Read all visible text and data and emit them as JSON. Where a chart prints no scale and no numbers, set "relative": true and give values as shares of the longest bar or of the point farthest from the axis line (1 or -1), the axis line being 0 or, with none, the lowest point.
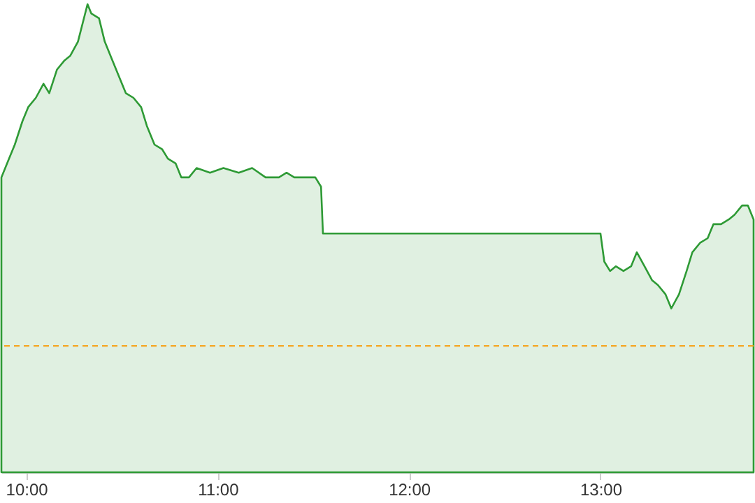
{
  "chart_data": {
    "type": "area",
    "relative": true,
    "color": "#2e9a35",
    "x": [
      9.87,
      9.91,
      9.94,
      9.98,
      10.01,
      10.05,
      10.09,
      10.12,
      10.16,
      10.2,
      10.23,
      10.27,
      10.32,
      10.34,
      10.38,
      10.41,
      10.45,
      10.49,
      10.52,
      10.56,
      10.6,
      10.63,
      10.67,
      10.71,
      10.74,
      10.78,
      10.81,
      10.85,
      10.89,
      10.96,
      11.03,
      11.11,
      11.18,
      11.25,
      11.32,
      11.36,
      11.4,
      11.43,
      11.51,
      11.54,
      11.55,
      13.0,
      13.02,
      13.05,
      13.08,
      13.12,
      13.16,
      13.19,
      13.23,
      13.27,
      13.3,
      13.34,
      13.37,
      13.41,
      13.45,
      13.48,
      13.52,
      13.56,
      13.59,
      13.63,
      13.67,
      13.7,
      13.74,
      13.77,
      13.8
    ],
    "values": [
      0.63,
      0.67,
      0.7,
      0.75,
      0.78,
      0.8,
      0.83,
      0.81,
      0.86,
      0.88,
      0.89,
      0.92,
      1,
      0.98,
      0.97,
      0.92,
      0.88,
      0.84,
      0.81,
      0.8,
      0.78,
      0.74,
      0.7,
      0.69,
      0.67,
      0.66,
      0.63,
      0.63,
      0.65,
      0.64,
      0.65,
      0.64,
      0.65,
      0.63,
      0.63,
      0.64,
      0.63,
      0.63,
      0.63,
      0.61,
      0.51,
      0.51,
      0.45,
      0.43,
      0.44,
      0.43,
      0.44,
      0.47,
      0.44,
      0.41,
      0.4,
      0.38,
      0.35,
      0.38,
      0.43,
      0.47,
      0.49,
      0.5,
      0.53,
      0.53,
      0.54,
      0.55,
      0.57,
      0.57,
      0.54
    ],
    "xlim": [
      9.87,
      13.8
    ],
    "xticks": [
      {
        "value": 10,
        "label": "10:00"
      },
      {
        "value": 11,
        "label": "11:00"
      },
      {
        "value": 12,
        "label": "12:00"
      },
      {
        "value": 13,
        "label": "13:00"
      }
    ],
    "ref_lines": [
      {
        "axis": "y",
        "value": 0.27,
        "label": null,
        "color": "#f5a623",
        "line_style": "dashed"
      }
    ],
    "grid": false
  }
}
